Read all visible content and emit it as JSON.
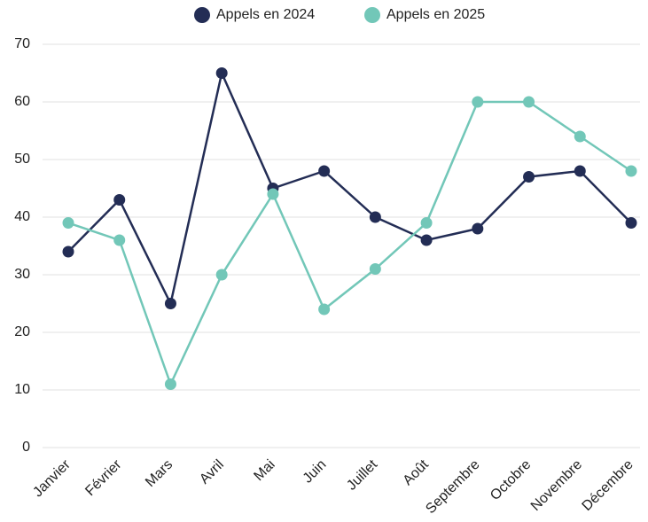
{
  "chart_data": {
    "type": "line",
    "categories": [
      "Janvier",
      "Février",
      "Mars",
      "Avril",
      "Mai",
      "Juin",
      "Juillet",
      "Août",
      "Septembre",
      "Octobre",
      "Novembre",
      "Décembre"
    ],
    "series": [
      {
        "name": "Appels en 2024",
        "color": "#232d55",
        "values": [
          34,
          43,
          25,
          65,
          45,
          48,
          40,
          36,
          38,
          47,
          48,
          39
        ]
      },
      {
        "name": "Appels en 2025",
        "color": "#72c7b8",
        "values": [
          39,
          36,
          11,
          30,
          44,
          24,
          31,
          39,
          60,
          60,
          54,
          48
        ]
      }
    ],
    "ylim": [
      0,
      70
    ],
    "yticks": [
      0,
      10,
      20,
      30,
      40,
      50,
      60,
      70
    ],
    "grid": true,
    "legend": "top"
  }
}
